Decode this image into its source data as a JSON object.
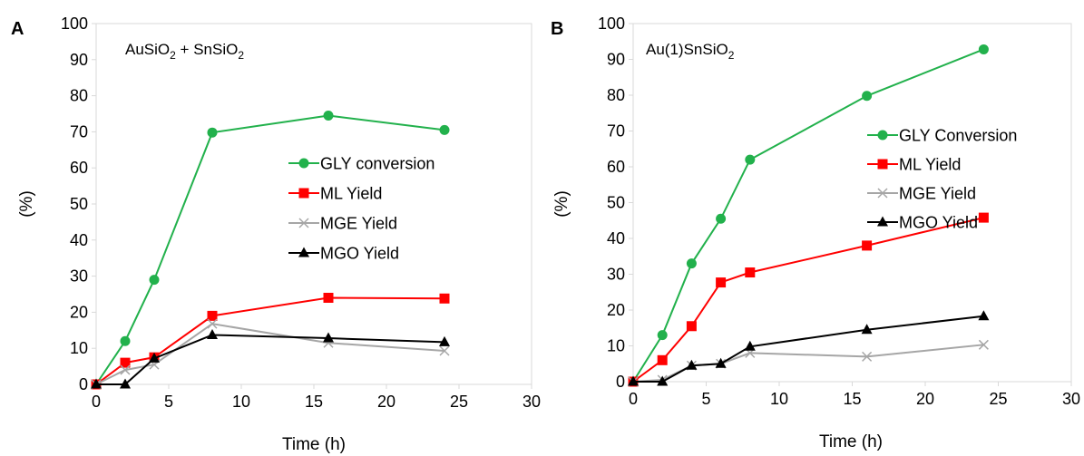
{
  "chart_data": [
    {
      "type": "line",
      "panel_label": "A",
      "title": "AuSiO2 + SnSiO2",
      "title_parts": {
        "p1": "AuSiO",
        "s1": "2",
        "p2": " + SnSiO",
        "s2": "2"
      },
      "xlabel": "Time (h)",
      "ylabel": "(%)",
      "xlim": [
        0,
        30
      ],
      "ylim": [
        0,
        100
      ],
      "xticks": [
        0,
        5,
        10,
        15,
        20,
        25,
        30
      ],
      "yticks": [
        0,
        10,
        20,
        30,
        40,
        50,
        60,
        70,
        80,
        90,
        100
      ],
      "grid": false,
      "legend_position": "right",
      "series": [
        {
          "name": "GLY conversion",
          "color": "#22b14c",
          "marker": "circle",
          "x": [
            0,
            2,
            4,
            8,
            16,
            24
          ],
          "y": [
            0,
            12,
            29,
            69.8,
            74.5,
            70.5
          ]
        },
        {
          "name": "ML Yield",
          "color": "#ff0000",
          "marker": "square",
          "x": [
            0,
            2,
            4,
            8,
            16,
            24
          ],
          "y": [
            0,
            6,
            7.5,
            19,
            24,
            23.8
          ]
        },
        {
          "name": "MGE Yield",
          "color": "#a6a6a6",
          "marker": "x",
          "x": [
            0,
            2,
            4,
            8,
            16,
            24
          ],
          "y": [
            0,
            4,
            5.5,
            16.8,
            11.5,
            9.3
          ]
        },
        {
          "name": "MGO Yield",
          "color": "#000000",
          "marker": "triangle",
          "x": [
            0,
            2,
            4,
            8,
            16,
            24
          ],
          "y": [
            0,
            0,
            7.2,
            13.7,
            12.8,
            11.7
          ]
        }
      ]
    },
    {
      "type": "line",
      "panel_label": "B",
      "title": "Au(1)SnSiO2",
      "title_parts": {
        "p1": "Au(1)SnSiO",
        "s1": "2",
        "p2": "",
        "s2": ""
      },
      "xlabel": "Time (h)",
      "ylabel": "(%)",
      "xlim": [
        0,
        30
      ],
      "ylim": [
        0,
        100
      ],
      "xticks": [
        0,
        5,
        10,
        15,
        20,
        25,
        30
      ],
      "yticks": [
        0,
        10,
        20,
        30,
        40,
        50,
        60,
        70,
        80,
        90,
        100
      ],
      "grid": false,
      "legend_position": "right",
      "series": [
        {
          "name": "GLY Conversion",
          "color": "#22b14c",
          "marker": "circle",
          "x": [
            0,
            2,
            4,
            6,
            8,
            16,
            24
          ],
          "y": [
            0,
            13,
            33,
            45.5,
            62,
            79.8,
            92.8
          ]
        },
        {
          "name": "ML Yield",
          "color": "#ff0000",
          "marker": "square",
          "x": [
            0,
            2,
            4,
            6,
            8,
            16,
            24
          ],
          "y": [
            0,
            6,
            15.5,
            27.7,
            30.5,
            38,
            45.8
          ]
        },
        {
          "name": "MGE Yield",
          "color": "#a6a6a6",
          "marker": "x",
          "x": [
            0,
            2,
            4,
            6,
            8,
            16,
            24
          ],
          "y": [
            0,
            0.5,
            4.5,
            5,
            8,
            7,
            10.3
          ]
        },
        {
          "name": "MGO Yield",
          "color": "#000000",
          "marker": "triangle",
          "x": [
            0,
            2,
            4,
            6,
            8,
            16,
            24
          ],
          "y": [
            0,
            0,
            4.5,
            5,
            9.8,
            14.5,
            18.3
          ]
        }
      ]
    }
  ]
}
